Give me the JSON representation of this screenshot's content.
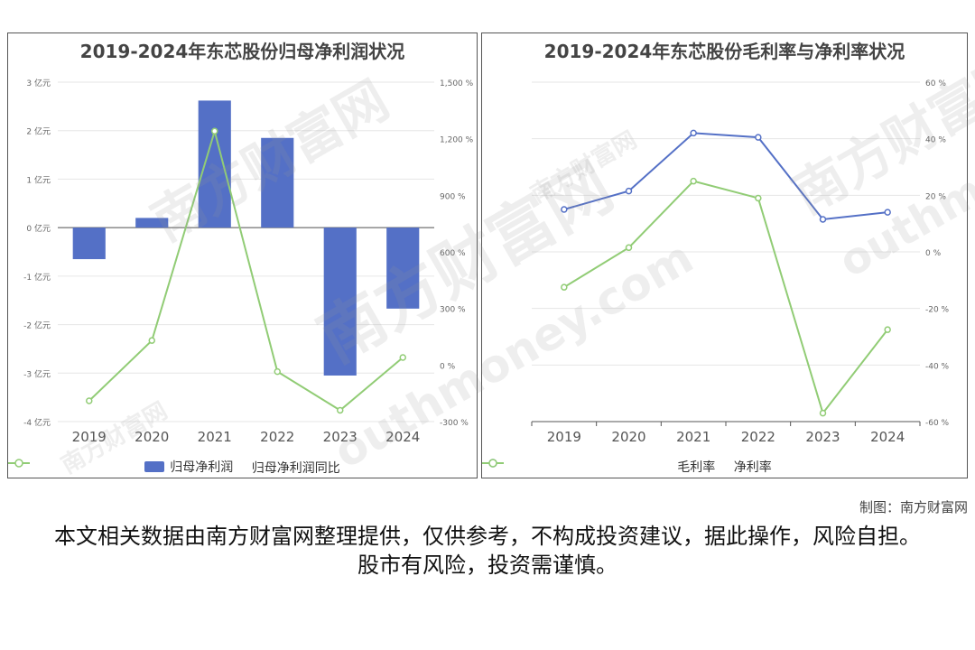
{
  "colors": {
    "bar": "#5470c6",
    "green": "#91cc75",
    "blue": "#5470c6",
    "axis": "#666666",
    "grid": "#e6e6e6"
  },
  "watermark": {
    "main": "南方财富网",
    "sub": "outhmoney.com"
  },
  "source": "制图：南方财富网",
  "disclaimer": "本文相关数据由南方财富网整理提供，仅供参考，不构成投资建议，据此操作，风险自担。股市有风险，投资需谨慎。",
  "chart_data": [
    {
      "type": "bar",
      "title": "2019-2024年东芯股份归母净利润状况",
      "categories": [
        "2019",
        "2020",
        "2021",
        "2022",
        "2023",
        "2024"
      ],
      "y_ticks": [
        "3 亿元",
        "2 亿元",
        "1 亿元",
        "0 亿元",
        "-1 亿元",
        "-2 亿元",
        "-3 亿元",
        "-4 亿元"
      ],
      "y2_ticks": [
        "1,500 %",
        "1,200 %",
        "900 %",
        "600 %",
        "300 %",
        "0 %",
        "-300 %"
      ],
      "ylim": [
        -4,
        3
      ],
      "y2lim": [
        -300,
        1500
      ],
      "legend_position": "bottom",
      "series": [
        {
          "name": "归母净利润",
          "type": "bar",
          "axis": "left",
          "values": [
            -0.65,
            0.2,
            2.62,
            1.85,
            -3.05,
            -1.67
          ]
        },
        {
          "name": "归母净利润同比",
          "type": "line",
          "axis": "right",
          "values": [
            -190,
            130,
            1240,
            -35,
            -240,
            40
          ]
        }
      ]
    },
    {
      "type": "line",
      "title": "2019-2024年东芯股份毛利率与净利率状况",
      "categories": [
        "2019",
        "2020",
        "2021",
        "2022",
        "2023",
        "2024"
      ],
      "y_ticks": [
        "60 %",
        "40 %",
        "20 %",
        "0 %",
        "-20 %",
        "-40 %",
        "-60 %"
      ],
      "ylim": [
        -60,
        60
      ],
      "legend_position": "bottom",
      "series": [
        {
          "name": "毛利率",
          "values": [
            15,
            21.5,
            42,
            40.5,
            11.5,
            14
          ]
        },
        {
          "name": "净利率",
          "values": [
            -12.5,
            1.5,
            25,
            19,
            -57,
            -27.5
          ]
        }
      ]
    }
  ]
}
